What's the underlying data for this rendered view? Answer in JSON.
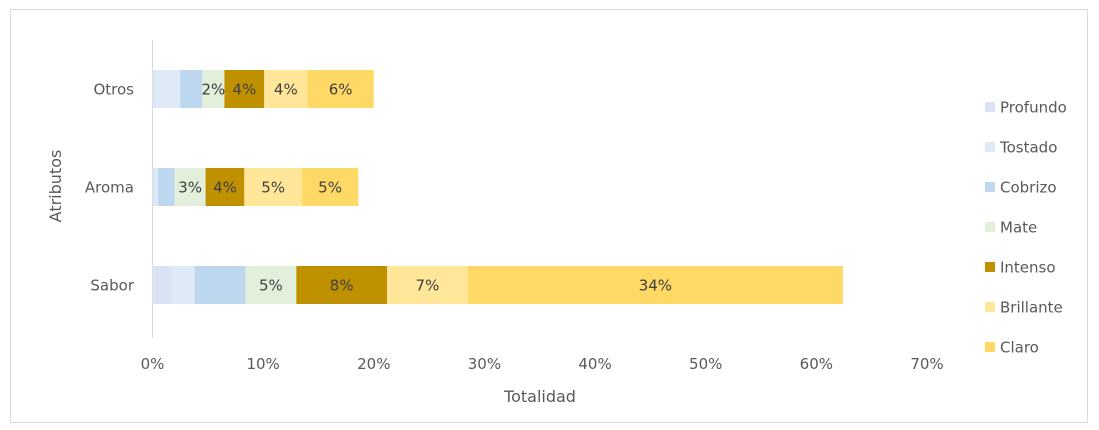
{
  "chart_data": {
    "type": "bar",
    "orientation": "horizontal",
    "stacked": true,
    "categories": [
      "Sabor",
      "Aroma",
      "Otros"
    ],
    "series": [
      {
        "name": "Profundo",
        "color": "#dae3f3",
        "values": [
          1.8,
          0.3,
          0.3
        ],
        "labels": [
          "",
          "",
          ""
        ]
      },
      {
        "name": "Tostado",
        "color": "#deebf7",
        "values": [
          2.0,
          0.2,
          2.2
        ],
        "labels": [
          "",
          "",
          ""
        ]
      },
      {
        "name": "Cobrizo",
        "color": "#bdd7ee",
        "values": [
          4.6,
          1.5,
          2.0
        ],
        "labels": [
          "",
          "",
          ""
        ]
      },
      {
        "name": "Mate",
        "color": "#e2efda",
        "values": [
          4.6,
          2.8,
          2.0
        ],
        "labels": [
          "5%",
          "3%",
          "2%"
        ]
      },
      {
        "name": "Intenso",
        "color": "#bf9000",
        "values": [
          8.2,
          3.5,
          3.6
        ],
        "labels": [
          "8%",
          "4%",
          "4%"
        ]
      },
      {
        "name": "Brillante",
        "color": "#ffe699",
        "values": [
          7.3,
          5.2,
          3.9
        ],
        "labels": [
          "7%",
          "5%",
          "4%"
        ]
      },
      {
        "name": "Claro",
        "color": "#ffd966",
        "values": [
          33.9,
          5.1,
          6.0
        ],
        "labels": [
          "34%",
          "5%",
          "6%"
        ]
      }
    ],
    "xlim": [
      0,
      70
    ],
    "x_ticks": [
      "0%",
      "10%",
      "20%",
      "30%",
      "40%",
      "50%",
      "60%",
      "70%"
    ],
    "xlabel": "Totalidad",
    "ylabel": "Atributos",
    "title": "",
    "grid": false,
    "legend_position": "right"
  }
}
